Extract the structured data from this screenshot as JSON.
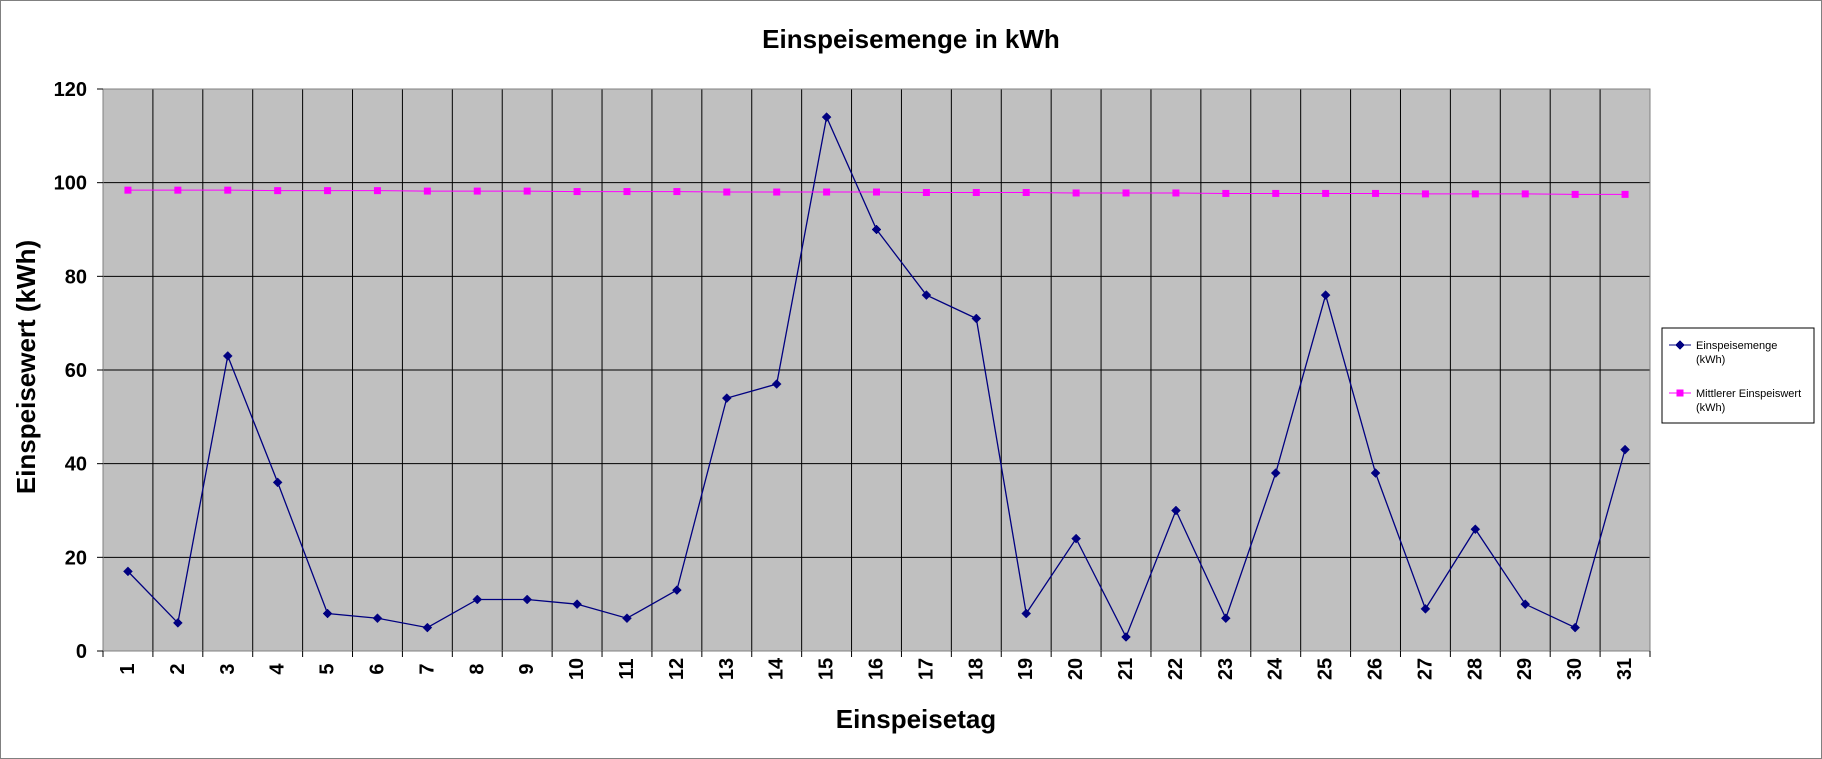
{
  "chart_data": {
    "type": "line",
    "title": "Einspeisemenge in kWh",
    "xlabel": "Einspeisetag",
    "ylabel": "Einspeisewert  (kWh)",
    "ylim": [
      0,
      120
    ],
    "ytick_step": 20,
    "grid": true,
    "plot_background": "#c0c0c0",
    "legend_position": "right",
    "categories": [
      "1",
      "2",
      "3",
      "4",
      "5",
      "6",
      "7",
      "8",
      "9",
      "10",
      "11",
      "12",
      "13",
      "14",
      "15",
      "16",
      "17",
      "18",
      "19",
      "20",
      "21",
      "22",
      "23",
      "24",
      "25",
      "26",
      "27",
      "28",
      "29",
      "30",
      "31"
    ],
    "series": [
      {
        "name": "Einspeisemenge (kWh)",
        "legend_lines": [
          "Einspeisemenge",
          "(kWh)"
        ],
        "color": "#000080",
        "marker": "diamond",
        "values": [
          17,
          6,
          63,
          36,
          8,
          7,
          5,
          11,
          11,
          10,
          7,
          13,
          54,
          57,
          114,
          90,
          76,
          71,
          8,
          24,
          3,
          30,
          7,
          38,
          76,
          38,
          9,
          26,
          10,
          5,
          43
        ]
      },
      {
        "name": "Mittlerer Einspeiswert (kWh)",
        "legend_lines": [
          "Mittlerer Einspeiswert",
          "(kWh)"
        ],
        "color": "#ff00ff",
        "marker": "square",
        "values": [
          98.4,
          98.4,
          98.4,
          98.3,
          98.3,
          98.3,
          98.2,
          98.2,
          98.2,
          98.1,
          98.1,
          98.1,
          98.0,
          98.0,
          98.0,
          98.0,
          97.9,
          97.9,
          97.9,
          97.8,
          97.8,
          97.8,
          97.7,
          97.7,
          97.7,
          97.7,
          97.6,
          97.6,
          97.6,
          97.5,
          97.5
        ]
      }
    ]
  }
}
